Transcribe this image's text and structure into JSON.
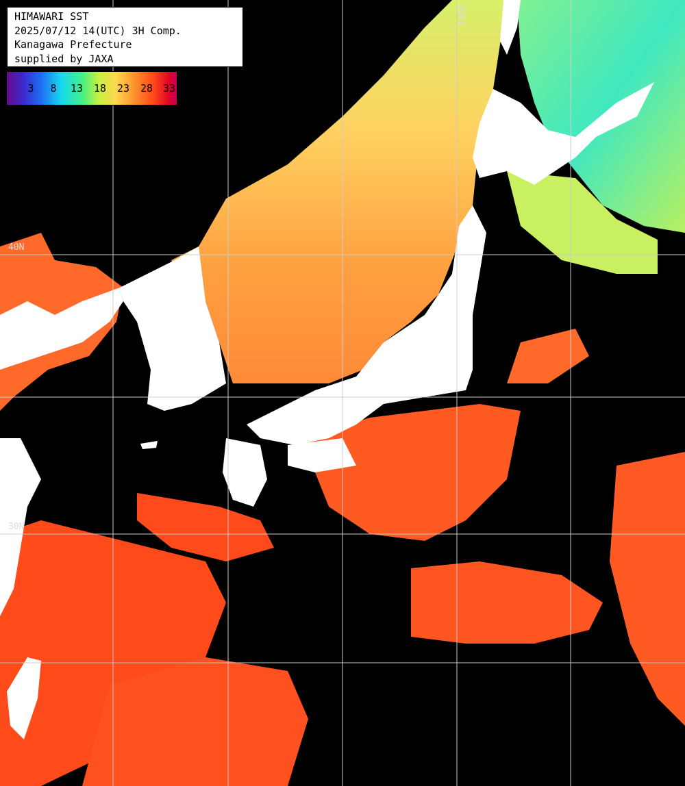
{
  "title": {
    "line1": "HIMAWARI SST",
    "line2": "2025/07/12 14(UTC) 3H Comp.",
    "line3": "Kanagawa Prefecture",
    "line4": "supplied by JAXA"
  },
  "color_scale": {
    "labels": [
      "3",
      "8",
      "13",
      "18",
      "23",
      "28",
      "33"
    ],
    "unit": ""
  },
  "grid_labels": {
    "lat_40": "40N",
    "lat_30": "30N",
    "lon_140": "140E"
  },
  "colors": {
    "land": "#ffffff",
    "no_data": "#000000",
    "warm_sea": "#ff5520",
    "mid_sea": "#ffa040",
    "cool_sea": "#b8f060",
    "cold_sea": "#40f0c0",
    "grid": "#cccccc"
  }
}
